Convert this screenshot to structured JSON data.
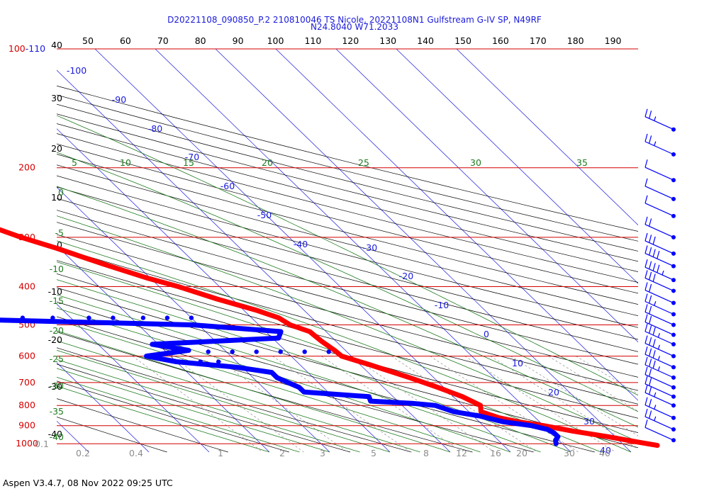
{
  "chart_data": {
    "type": "scatter",
    "title": "D20221108_090850_P.2 210810046 TS Nicole, 20221108N1 Gulfstream G-IV SP, N49RF",
    "subtitle": "N24.8040 W71.2033",
    "footer": "Aspen V3.4.7, 08 Nov 2022  09:25 UTC",
    "colors": {
      "isobar": "#d40000",
      "isotherm": "#1a1adc",
      "dry_adiabat": "#000000",
      "moist_adiabat": "#1e7b1e",
      "mixing_ratio": "#8c8c8c",
      "temperature": "#ff0000",
      "dewpoint": "#0000ff",
      "barb": "#0000ff"
    },
    "pressure_labels": [
      {
        "p": 100,
        "label": "100-110"
      },
      {
        "p": 200,
        "label": "200"
      },
      {
        "p": 300,
        "label": "300"
      },
      {
        "p": 400,
        "label": "400"
      },
      {
        "p": 500,
        "label": "500"
      },
      {
        "p": 600,
        "label": "600"
      },
      {
        "p": 700,
        "label": "700"
      },
      {
        "p": 800,
        "label": "800"
      },
      {
        "p": 900,
        "label": "900"
      },
      {
        "p": 1000,
        "label": "1000"
      }
    ],
    "top_axis_ticks": [
      "50",
      "60",
      "70",
      "80",
      "90",
      "100",
      "110",
      "120",
      "130",
      "140",
      "150",
      "160",
      "170",
      "180",
      "190"
    ],
    "left_height_labels": [
      "40",
      "30",
      "20",
      "10",
      "0",
      "-10",
      "-20",
      "-30",
      "-40"
    ],
    "isotherm_labels": [
      "-100",
      "-90",
      "-80",
      "-70",
      "-60",
      "-50",
      "-40",
      "-30",
      "-20",
      "-10",
      "0",
      "10",
      "20",
      "30",
      "40"
    ],
    "moist_top_labels": [
      "5",
      "10",
      "15",
      "20",
      "25",
      "30",
      "35"
    ],
    "moist_left_labels": [
      "0",
      "-5",
      "-10",
      "-15",
      "-20",
      "-25",
      "-30",
      "-35",
      "-40"
    ],
    "mixing_ratio_labels": [
      "0.1",
      "0.2",
      "0.4",
      "1",
      "2",
      "3",
      "5",
      "8",
      "12",
      "16",
      "20",
      "30",
      "40"
    ],
    "temperature": {
      "name": "Temperature",
      "points": [
        [
          180,
          -55
        ],
        [
          190,
          -56.5
        ],
        [
          200,
          -58
        ],
        [
          215,
          -58
        ],
        [
          230,
          -56.5
        ],
        [
          250,
          -53
        ],
        [
          270,
          -49.8
        ],
        [
          300,
          -44.5
        ],
        [
          320,
          -40.4
        ],
        [
          350,
          -35.5
        ],
        [
          380,
          -30.6
        ],
        [
          400,
          -26.8
        ],
        [
          430,
          -22.5
        ],
        [
          460,
          -17.8
        ],
        [
          480,
          -15.5
        ],
        [
          500,
          -14.8
        ],
        [
          520,
          -12.7
        ],
        [
          550,
          -12.4
        ],
        [
          580,
          -11.8
        ],
        [
          600,
          -11.6
        ],
        [
          630,
          -8.5
        ],
        [
          680,
          -4.0
        ],
        [
          720,
          -1.0
        ],
        [
          760,
          1.5
        ],
        [
          800,
          3.0
        ],
        [
          830,
          2.0
        ],
        [
          860,
          4.0
        ],
        [
          880,
          6.5
        ],
        [
          900,
          10.0
        ],
        [
          930,
          14.0
        ],
        [
          960,
          18.8
        ],
        [
          990,
          22.8
        ],
        [
          1010,
          25.5
        ]
      ]
    },
    "dewpoint": {
      "name": "Dew point",
      "points": [
        [
          225,
          -95
        ],
        [
          240,
          -93.5
        ],
        [
          260,
          -87.5
        ],
        [
          280,
          -88.5
        ],
        [
          300,
          -84
        ],
        [
          320,
          -79
        ],
        [
          340,
          -70
        ],
        [
          360,
          -71
        ],
        [
          390,
          -73
        ],
        [
          400,
          -71.5
        ],
        [
          420,
          -69
        ],
        [
          450,
          -63.5
        ],
        [
          470,
          -71
        ],
        [
          475,
          -72
        ],
        [
          480,
          -77
        ],
        [
          500,
          -31
        ],
        [
          520,
          -17.5
        ],
        [
          540,
          -19
        ],
        [
          560,
          -41
        ],
        [
          580,
          -36
        ],
        [
          600,
          -44
        ],
        [
          620,
          -40
        ],
        [
          640,
          -31
        ],
        [
          660,
          -26
        ],
        [
          680,
          -26
        ],
        [
          700,
          -25
        ],
        [
          720,
          -24
        ],
        [
          740,
          -24
        ],
        [
          760,
          -14
        ],
        [
          780,
          -14.5
        ],
        [
          790,
          -8
        ],
        [
          800,
          -4.5
        ],
        [
          830,
          -2.5
        ],
        [
          850,
          1.0
        ],
        [
          880,
          4.0
        ],
        [
          900,
          8.0
        ],
        [
          920,
          10.0
        ],
        [
          940,
          10.5
        ],
        [
          960,
          10.5
        ],
        [
          980,
          9.5
        ],
        [
          1000,
          9.0
        ]
      ],
      "scatter": [
        [
          480,
          -63
        ],
        [
          480,
          -58
        ],
        [
          480,
          -53
        ],
        [
          480,
          -47
        ],
        [
          480,
          -43
        ],
        [
          480,
          -38
        ],
        [
          480,
          -34
        ],
        [
          480,
          -30
        ],
        [
          585,
          -33
        ],
        [
          585,
          -29
        ],
        [
          585,
          -25
        ],
        [
          585,
          -21
        ],
        [
          585,
          -17
        ],
        [
          585,
          -13
        ],
        [
          620,
          -39
        ],
        [
          620,
          -36
        ],
        [
          620,
          -33
        ]
      ]
    },
    "isolated_point": {
      "p": 188,
      "t": -65.5
    },
    "wind_barbs": [
      {
        "p": 160,
        "speed": 15
      },
      {
        "p": 185,
        "speed": 15
      },
      {
        "p": 215,
        "speed": 10
      },
      {
        "p": 240,
        "speed": 10
      },
      {
        "p": 265,
        "speed": 10
      },
      {
        "p": 300,
        "speed": 20
      },
      {
        "p": 330,
        "speed": 30
      },
      {
        "p": 355,
        "speed": 40
      },
      {
        "p": 385,
        "speed": 35
      },
      {
        "p": 410,
        "speed": 30
      },
      {
        "p": 440,
        "speed": 20
      },
      {
        "p": 470,
        "speed": 15
      },
      {
        "p": 500,
        "speed": 20
      },
      {
        "p": 530,
        "speed": 20
      },
      {
        "p": 560,
        "speed": 25
      },
      {
        "p": 600,
        "speed": 25
      },
      {
        "p": 640,
        "speed": 25
      },
      {
        "p": 680,
        "speed": 25
      },
      {
        "p": 720,
        "speed": 20
      },
      {
        "p": 760,
        "speed": 20
      },
      {
        "p": 800,
        "speed": 15
      },
      {
        "p": 860,
        "speed": 15
      },
      {
        "p": 920,
        "speed": 15
      },
      {
        "p": 980,
        "speed": 10
      }
    ]
  }
}
